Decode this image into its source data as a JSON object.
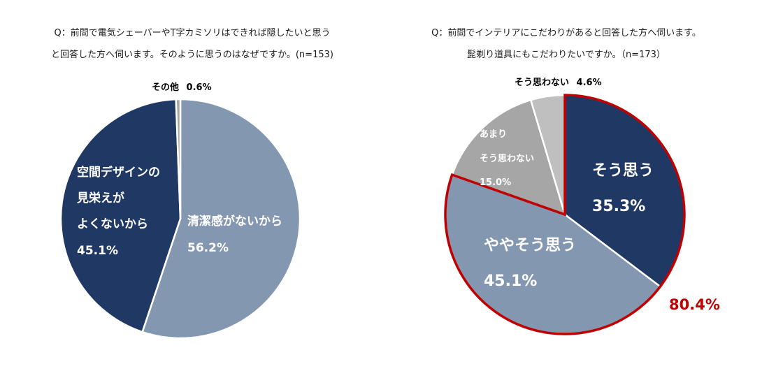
{
  "chart_data": [
    {
      "type": "pie",
      "title_lines": [
        "Q：前問で電気シェーバーやT字カミソリはできれば隠したいと思う",
        "と回答した方へ伺います。そのように思うのはなぜですか。(n=153)"
      ],
      "slices": [
        {
          "label": "清潔感がないから",
          "value": 56.2,
          "value_text": "56.2%",
          "color": "#8497b0"
        },
        {
          "label_lines": [
            "空間デザインの",
            "見栄えが",
            "よくないから"
          ],
          "value": 45.1,
          "value_text": "45.1%",
          "color": "#203864"
        },
        {
          "label": "その他",
          "value": 0.6,
          "value_text": "0.6%",
          "color": "#a6a6a6"
        }
      ]
    },
    {
      "type": "pie",
      "title_lines": [
        "Q：前問でインテリアにこだわりがあると回答した方へ伺います。",
        "髭剃り道具にもこだわりたいですか。（n=173）"
      ],
      "slices": [
        {
          "label": "そう思う",
          "value": 35.3,
          "value_text": "35.3%",
          "color": "#203864"
        },
        {
          "label": "ややそう思う",
          "value": 45.1,
          "value_text": "45.1%",
          "color": "#8497b0"
        },
        {
          "label_lines": [
            "あまり",
            "そう思わない"
          ],
          "value": 15.0,
          "value_text": "15.0%",
          "color": "#a6a6a6"
        },
        {
          "label": "そう思わない",
          "value": 4.6,
          "value_text": "4.6%",
          "color": "#bfbfbf"
        }
      ],
      "highlight": {
        "value_text": "80.4%",
        "color": "#c00000"
      }
    }
  ]
}
